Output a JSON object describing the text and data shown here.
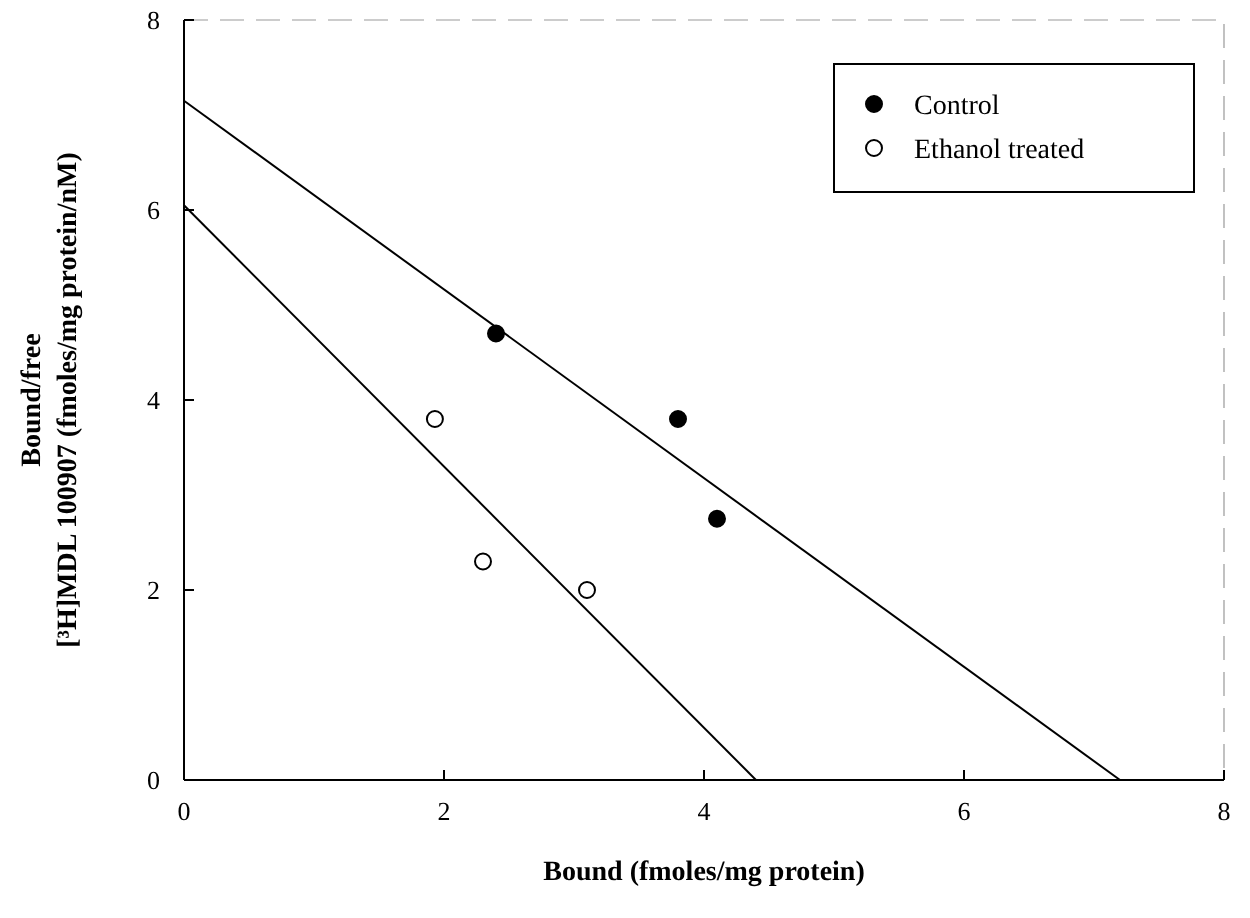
{
  "chart_data": {
    "type": "scatter",
    "xlabel": "Bound (fmoles/mg protein)",
    "ylabel": "Bound/free\n[³H]MDL 100907 (fmoles/mg protein/nM)",
    "xlim": [
      0,
      8
    ],
    "xticks": [
      0,
      2,
      4,
      6,
      8
    ],
    "ylim": [
      0,
      8
    ],
    "yticks": [
      0,
      2,
      4,
      6,
      8
    ],
    "grid": false,
    "legend": "top right",
    "marker": "circle",
    "series": [
      {
        "name": "Control",
        "color": "#000000",
        "x": [
          2.4,
          3.8,
          4.1
        ],
        "values": [
          4.7,
          3.8,
          2.75
        ]
      },
      {
        "name": "Ethanol treated",
        "color": "#ffffff",
        "x": [
          1.93,
          2.3,
          3.1
        ],
        "values": [
          3.8,
          2.3,
          2.0
        ]
      },
      {
        "type": "line",
        "marker": "none",
        "color": "#000000",
        "x": [
          0,
          7.2
        ],
        "values": [
          7.15,
          0
        ]
      },
      {
        "type": "line",
        "marker": "none",
        "color": "#000000",
        "x": [
          0,
          4.4
        ],
        "values": [
          6.05,
          0
        ]
      }
    ]
  }
}
